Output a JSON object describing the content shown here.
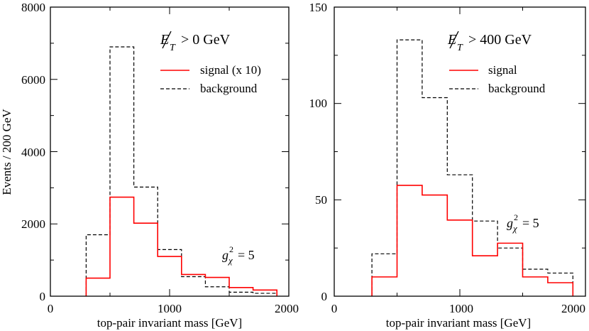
{
  "chart_data": [
    {
      "type": "histogram",
      "bins": [
        [
          300,
          500
        ],
        [
          500,
          700
        ],
        [
          700,
          900
        ],
        [
          900,
          1100
        ],
        [
          1100,
          1300
        ],
        [
          1300,
          1500
        ],
        [
          1500,
          1700
        ],
        [
          1700,
          1900
        ]
      ],
      "series": [
        {
          "name": "signal (x 10)",
          "color": "#ff0000",
          "style": "solid",
          "values": [
            500,
            2740,
            2020,
            1100,
            600,
            520,
            240,
            170
          ]
        },
        {
          "name": "background",
          "color": "#000000",
          "style": "dashed",
          "values": [
            1700,
            6900,
            3020,
            1290,
            540,
            260,
            110,
            80
          ]
        }
      ],
      "xlabel": "top-pair invariant mass [GeV]",
      "ylabel": "Events / 200 GeV",
      "xlim": [
        0,
        2000
      ],
      "ylim": [
        0,
        8000
      ],
      "xticks": [
        0,
        1000,
        2000
      ],
      "yticks": [
        0,
        2000,
        4000,
        6000,
        8000
      ],
      "xtick_labels": [
        "0",
        "1000",
        "2000"
      ],
      "ytick_labels": [
        "0",
        "2000",
        "4000",
        "6000",
        "8000"
      ],
      "met_symbol": "E",
      "met_subscript": "T",
      "cut_text": "> 0 GeV",
      "coupling_symbol": "g",
      "coupling_sub": "χ",
      "coupling_sup": "2",
      "coupling_value": "= 5",
      "legend_position": "top-right"
    },
    {
      "type": "histogram",
      "bins": [
        [
          300,
          500
        ],
        [
          500,
          700
        ],
        [
          700,
          900
        ],
        [
          900,
          1100
        ],
        [
          1100,
          1300
        ],
        [
          1300,
          1500
        ],
        [
          1500,
          1700
        ],
        [
          1700,
          1900
        ]
      ],
      "series": [
        {
          "name": "signal",
          "color": "#ff0000",
          "style": "solid",
          "values": [
            10,
            57.5,
            52.5,
            39.5,
            21,
            27.5,
            10,
            7
          ]
        },
        {
          "name": "background",
          "color": "#000000",
          "style": "dashed",
          "values": [
            22,
            133,
            103,
            63,
            39,
            25,
            14,
            12
          ]
        }
      ],
      "xlabel": "top-pair invariant mass [GeV]",
      "ylabel": "",
      "xlim": [
        0,
        2000
      ],
      "ylim": [
        0,
        150
      ],
      "xticks": [
        0,
        1000,
        2000
      ],
      "yticks": [
        0,
        50,
        100,
        150
      ],
      "xtick_labels": [
        "0",
        "1000",
        "2000"
      ],
      "ytick_labels": [
        "0",
        "50",
        "100",
        "150"
      ],
      "met_symbol": "E",
      "met_subscript": "T",
      "cut_text": "> 400 GeV",
      "coupling_symbol": "g",
      "coupling_sub": "χ",
      "coupling_sup": "2",
      "coupling_value": "= 5",
      "legend_position": "top-right"
    }
  ]
}
